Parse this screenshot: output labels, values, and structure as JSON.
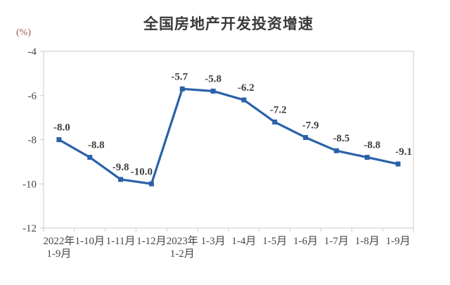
{
  "page": {
    "background_color": "#ffffff"
  },
  "chart_data": {
    "type": "line",
    "title": "全国房地产开发投资增速",
    "unit_label": "(%)",
    "categories": [
      [
        "2022年",
        "1-9月"
      ],
      [
        "1-10月"
      ],
      [
        "1-11月"
      ],
      [
        "1-12月"
      ],
      [
        "2023年",
        "1-2月"
      ],
      [
        "1-3月"
      ],
      [
        "1-4月"
      ],
      [
        "1-5月"
      ],
      [
        "1-6月"
      ],
      [
        "1-7月"
      ],
      [
        "1-8月"
      ],
      [
        "1-9月"
      ]
    ],
    "series": [
      {
        "name": "全国房地产开发投资增速",
        "values": [
          -8.0,
          -8.8,
          -9.8,
          -10.0,
          -5.7,
          -5.8,
          -6.2,
          -7.2,
          -7.9,
          -8.5,
          -8.8,
          -9.1
        ],
        "point_labels": [
          "-8.0",
          "-8.8",
          "-9.8",
          "-10.0",
          "-5.7",
          "-5.8",
          "-6.2",
          "-7.2",
          "-7.9",
          "-8.5",
          "-8.8",
          "-9.1"
        ]
      }
    ],
    "xlabel": "",
    "ylabel": "(%)",
    "ylim": [
      -12,
      -4
    ],
    "yticks": [
      -4,
      -6,
      -8,
      -10,
      -12
    ],
    "ytick_labels": [
      "-4",
      "-6",
      "-8",
      "-10",
      "-12"
    ],
    "grid": false,
    "legend_position": "none",
    "marker_shape": "square",
    "colors": {
      "line": "#2a62a9",
      "marker": "#2a62a9",
      "title": "#3a3a3a",
      "tick_label": "#464646",
      "point_label": "#3d3d3d",
      "axis_border": "#c9c9c9",
      "unit_label": "#9b5a50"
    }
  }
}
